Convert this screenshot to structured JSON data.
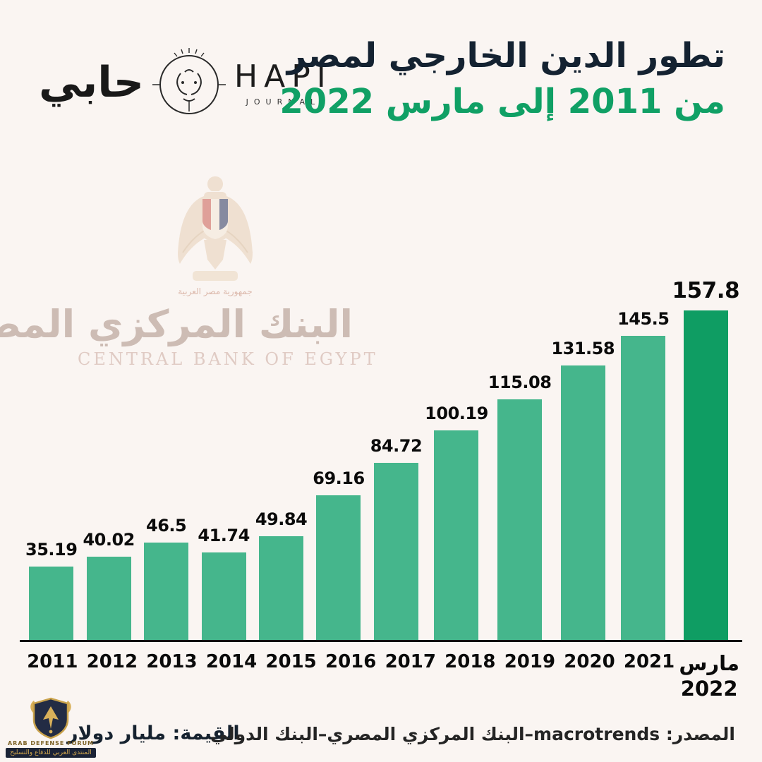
{
  "colors": {
    "background": "#faf5f2",
    "bar": "#45b68c",
    "bar_last": "#0f9d63",
    "title_dark": "#142231",
    "title_green": "#10a065",
    "axis": "#101010",
    "watermark_gold": "#c9a24b"
  },
  "header": {
    "logo": {
      "arabic": "حابي",
      "latin": "HAPI",
      "sub": "JOURNAL"
    },
    "title_line1": "تطور الدين الخارجي لمصر",
    "title_line2": "من 2011 إلى مارس 2022"
  },
  "cbe_watermark": {
    "scroll_text": "جمهورية مصر العربية",
    "arabic": "البنك المركزي المصري",
    "english": "CENTRAL BANK OF EGYPT"
  },
  "chart_data": {
    "type": "bar",
    "title": "تطور الدين الخارجي لمصر من 2011 إلى مارس 2022",
    "unit": "مليار دولار",
    "categories": [
      "2011",
      "2012",
      "2013",
      "2014",
      "2015",
      "2016",
      "2017",
      "2018",
      "2019",
      "2020",
      "2021",
      "مارس\n2022"
    ],
    "values": [
      35.19,
      40.02,
      46.5,
      41.74,
      49.84,
      69.16,
      84.72,
      100.19,
      115.08,
      131.58,
      145.5,
      157.8
    ],
    "value_labels": [
      "35.19",
      "40.02",
      "46.5",
      "41.74",
      "49.84",
      "69.16",
      "84.72",
      "100.19",
      "115.08",
      "131.58",
      "145.5",
      "157.8"
    ],
    "bar_color": "#45b68c",
    "last_bar_color": "#0f9d63",
    "ylim": [
      0,
      170
    ],
    "grid": false,
    "legend": "none"
  },
  "footer": {
    "value_label": "القيمة: مليار دولار",
    "source_label": "المصدر: macrotrends–البنك المركزي المصري–البنك الدولي"
  },
  "adf_watermark": {
    "line1": "ARAB DEFENSE FORUM",
    "line2": "المنتدى العربي للدفاع والتسليح"
  }
}
